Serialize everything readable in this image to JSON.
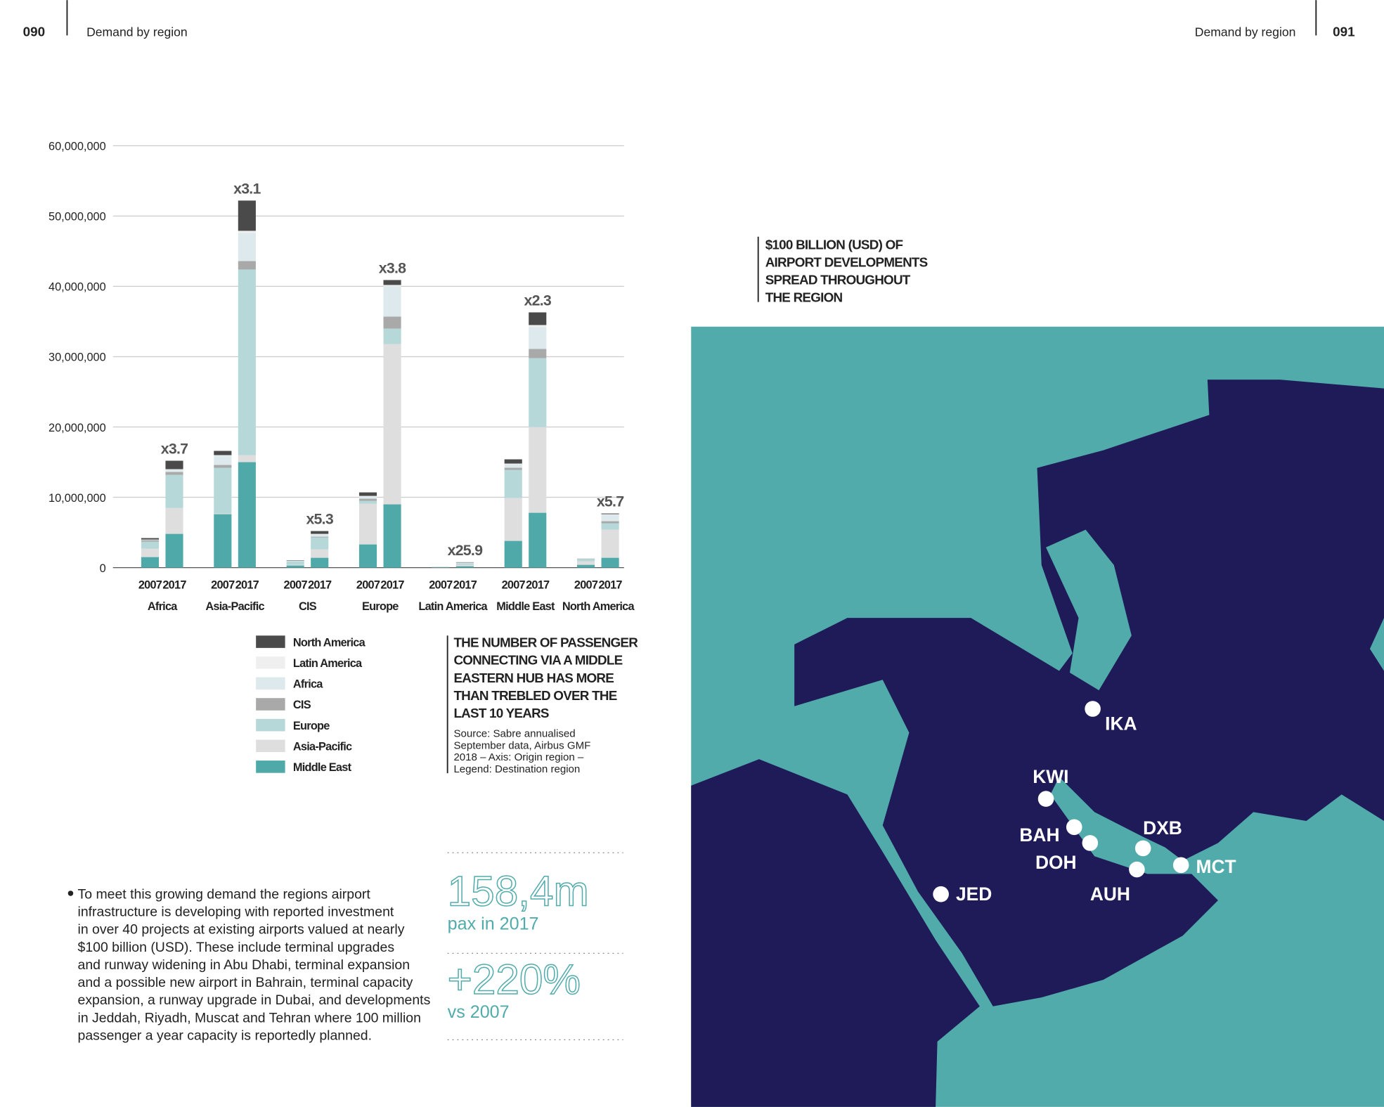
{
  "header": {
    "left_page": "090",
    "left_title": "Demand by region",
    "right_title": "Demand by region",
    "right_page": "091"
  },
  "chart_data": {
    "type": "stacked_bar",
    "categories": [
      "2007",
      "2017",
      "2007",
      "2017",
      "2007",
      "2017",
      "2007",
      "2017",
      "2007",
      "2017",
      "2007",
      "2017",
      "2007",
      "2017"
    ],
    "groups": [
      "Africa",
      "Asia-Pacific",
      "CIS",
      "Europe",
      "Latin America",
      "Middle East",
      "North America"
    ],
    "annotations": [
      "x3.7",
      "x3.1",
      "x5.3",
      "x3.8",
      "x25.9",
      "x2.3",
      "x5.7"
    ],
    "series": [
      {
        "name": "Middle East",
        "color": "#4fa9a9",
        "values": [
          1500000,
          4800000,
          7600000,
          15000000,
          300000,
          1400000,
          3300000,
          9000000,
          50000,
          200000,
          3800000,
          7800000,
          400000,
          1400000
        ]
      },
      {
        "name": "Asia-Pacific",
        "color": "#dedede",
        "values": [
          1200000,
          3700000,
          100000,
          1000000,
          100000,
          1200000,
          5800000,
          22800000,
          20000,
          200000,
          6100000,
          12200000,
          500000,
          4000000
        ]
      },
      {
        "name": "Europe",
        "color": "#b6d8d8",
        "values": [
          1000000,
          4700000,
          6500000,
          26400000,
          500000,
          1700000,
          400000,
          2200000,
          20000,
          200000,
          4000000,
          9800000,
          300000,
          900000
        ]
      },
      {
        "name": "CIS",
        "color": "#a9a9a9",
        "values": [
          200000,
          400000,
          400000,
          1200000,
          0,
          100000,
          300000,
          1700000,
          0,
          0,
          300000,
          1300000,
          50000,
          300000
        ]
      },
      {
        "name": "Africa",
        "color": "#dde9ec",
        "values": [
          100000,
          300000,
          1300000,
          4000000,
          100000,
          300000,
          300000,
          4300000,
          0,
          100000,
          500000,
          3100000,
          100000,
          900000
        ]
      },
      {
        "name": "Latin America",
        "color": "#efefef",
        "values": [
          0,
          100000,
          100000,
          300000,
          0,
          100000,
          100000,
          200000,
          0,
          20000,
          100000,
          300000,
          20000,
          100000
        ]
      },
      {
        "name": "North America",
        "color": "#4a4a4a",
        "values": [
          200000,
          1200000,
          600000,
          4300000,
          50000,
          400000,
          500000,
          700000,
          10000,
          50000,
          600000,
          1800000,
          0,
          100000
        ]
      }
    ],
    "ylim": [
      0,
      60000000
    ],
    "yticks": [
      0,
      {
        "value": 10000000,
        "label": "10,000,000"
      },
      {
        "value": 20000000,
        "label": "20,000,000"
      },
      {
        "value": 30000000,
        "label": "30,000,000"
      },
      {
        "value": 40000000,
        "label": "40,000,000"
      },
      {
        "value": 50000000,
        "label": "50,000,000"
      },
      {
        "value": 60000000,
        "label": "60,000,000"
      }
    ],
    "grid": true
  },
  "chart_callout": {
    "lines": [
      "THE NUMBER OF PASSENGER",
      "CONNECTING VIA A MIDDLE",
      "EASTERN HUB HAS MORE",
      "THAN TREBLED OVER THE",
      "LAST 10 YEARS"
    ],
    "source": [
      "Source: Sabre annualised",
      "September data, Airbus GMF",
      "2018 – Axis: Origin region –",
      "Legend: Destination region"
    ]
  },
  "body": [
    "To meet this growing demand the regions airport",
    "infrastructure is developing with reported investment",
    "in over 40 projects at existing airports valued at nearly",
    "$100 billion (USD). These include terminal upgrades",
    "and runway widening in Abu Dhabi, terminal expansion",
    "and a possible new airport in Bahrain, terminal capacity",
    "expansion, a runway upgrade in Dubai, and developments",
    "in Jeddah, Riyadh, Muscat and Tehran where 100 million",
    "passenger a year capacity is reportedly planned."
  ],
  "stats": [
    {
      "value": "158,4m",
      "caption": "pax in 2017"
    },
    {
      "value": "+220%",
      "caption": "vs 2007"
    }
  ],
  "map": {
    "title": [
      "$100 BILLION (USD) OF",
      "AIRPORT DEVELOPMENTS",
      "SPREAD THROUGHOUT",
      "THE REGION"
    ],
    "airports": [
      "IKA",
      "KWI",
      "BAH",
      "DOH",
      "DXB",
      "AUH",
      "MCT",
      "JED"
    ]
  }
}
